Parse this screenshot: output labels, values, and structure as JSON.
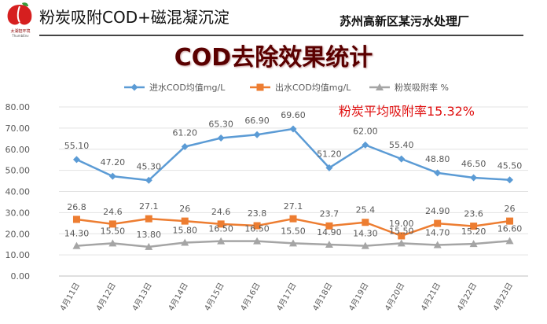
{
  "header": {
    "logo_text": "太湖担环境",
    "logo_sub": "ThumbEnv",
    "title": "粉炭吸附COD+磁混凝沉淀",
    "location": "苏州高新区某污水处理厂"
  },
  "slide_title": "COD去除效果统计",
  "annotation": "粉炭平均吸附率15.32%",
  "colors": {
    "influent": "#5b9bd5",
    "effluent": "#ed7d31",
    "adsorption": "#a5a5a5",
    "title": "#5a0000",
    "annotation": "#e01010"
  },
  "chart_data": {
    "type": "line",
    "title": "",
    "xlabel": "",
    "ylabel": "",
    "ylim": [
      0,
      80
    ],
    "yticks": [
      "0.00",
      "10.00",
      "20.00",
      "30.00",
      "40.00",
      "50.00",
      "60.00",
      "70.00",
      "80.00"
    ],
    "grid": true,
    "legend": "top",
    "categories": [
      "4月11日",
      "4月12日",
      "4月13日",
      "4月14日",
      "4月15日",
      "4月16日",
      "4月17日",
      "4月18日",
      "4月19日",
      "4月20日",
      "4月21日",
      "4月22日",
      "4月23日"
    ],
    "series": [
      {
        "name": "进水COD均值mg/L",
        "color": "#5b9bd5",
        "marker": "diamond",
        "values": [
          55.1,
          47.2,
          45.3,
          61.2,
          65.3,
          66.9,
          69.6,
          51.2,
          62.0,
          55.4,
          48.8,
          46.5,
          45.5
        ],
        "labels": [
          "55.10",
          "47.20",
          "45.30",
          "61.20",
          "65.30",
          "66.90",
          "69.60",
          "51.20",
          "62.00",
          "55.40",
          "48.80",
          "46.50",
          "45.50"
        ]
      },
      {
        "name": "出水COD均值mg/L",
        "color": "#ed7d31",
        "marker": "square",
        "values": [
          26.8,
          24.6,
          27.1,
          26,
          24.6,
          23.8,
          27.1,
          23.7,
          25.4,
          19.0,
          24.9,
          23.6,
          26
        ],
        "labels": [
          "26.8",
          "24.6",
          "27.1",
          "26",
          "24.6",
          "23.8",
          "27.1",
          "23.7",
          "25.4",
          "19.00",
          "24.90",
          "23.6",
          "26"
        ]
      },
      {
        "name": "粉炭吸附率 %",
        "color": "#a5a5a5",
        "marker": "triangle",
        "values": [
          14.3,
          15.5,
          13.8,
          15.8,
          16.5,
          16.5,
          15.5,
          14.9,
          14.3,
          15.5,
          14.7,
          15.2,
          16.6
        ],
        "labels": [
          "14.30",
          "15.50",
          "13.80",
          "15.80",
          "16.50",
          "16.50",
          "15.50",
          "14.90",
          "14.30",
          "15.50",
          "14.70",
          "15.20",
          "16.60"
        ]
      }
    ]
  }
}
